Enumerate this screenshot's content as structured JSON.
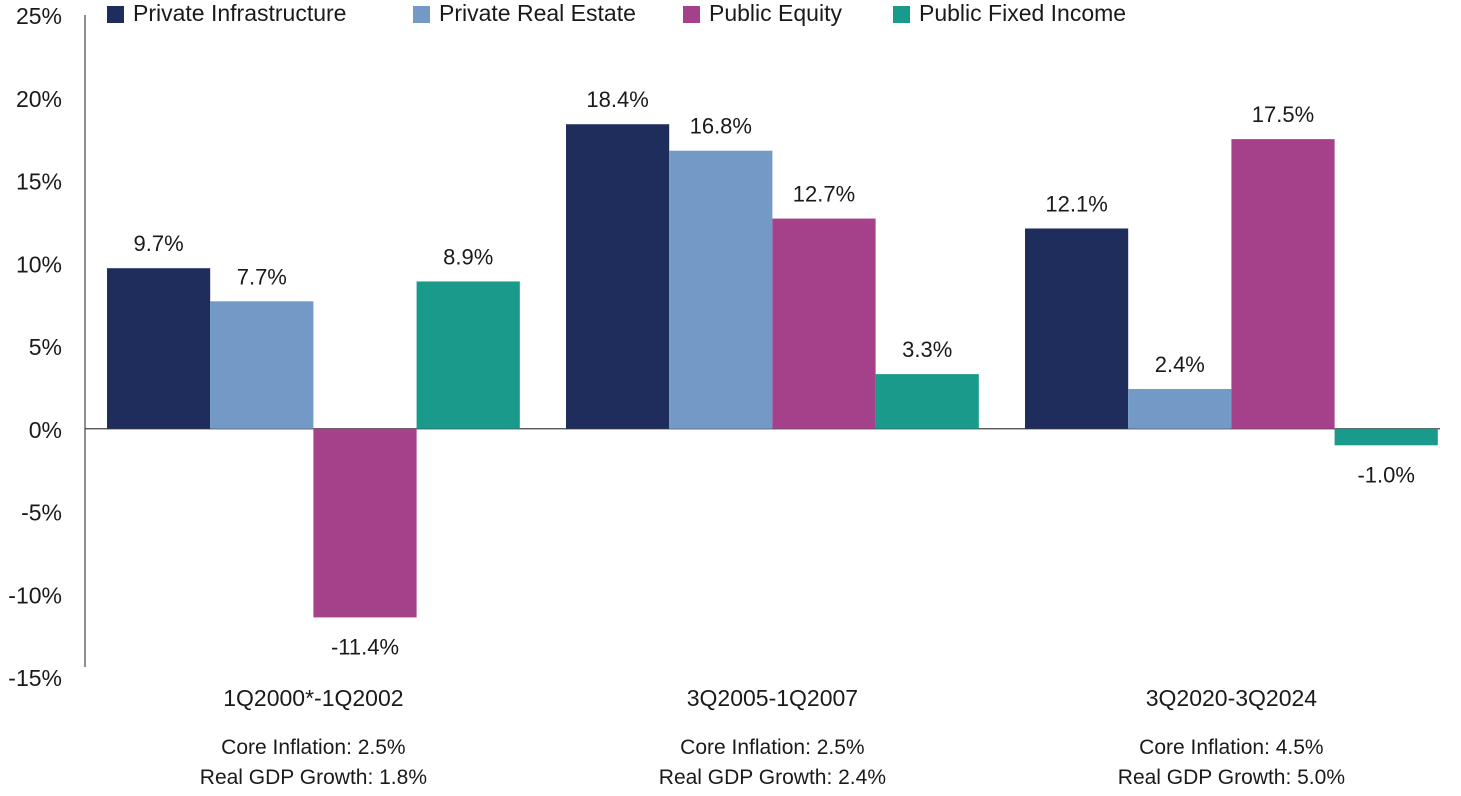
{
  "chart_data": {
    "type": "bar",
    "categories": [
      "1Q2000*-1Q2002",
      "3Q2005-1Q2007",
      "3Q2020-3Q2024"
    ],
    "category_notes": [
      [
        "Core Inflation: 2.5%",
        "Real GDP Growth: 1.8%"
      ],
      [
        "Core Inflation: 2.5%",
        "Real GDP Growth: 2.4%"
      ],
      [
        "Core Inflation: 4.5%",
        "Real GDP Growth: 5.0%"
      ]
    ],
    "series": [
      {
        "name": "Private Infrastructure",
        "color": "#1f2d5c",
        "values": [
          9.7,
          18.4,
          12.1
        ],
        "labels": [
          "9.7%",
          "18.4%",
          "12.1%"
        ]
      },
      {
        "name": "Private Real Estate",
        "color": "#7399c6",
        "values": [
          7.7,
          16.8,
          2.4
        ],
        "labels": [
          "7.7%",
          "16.8%",
          "2.4%"
        ]
      },
      {
        "name": "Public Equity",
        "color": "#a5418a",
        "values": [
          -11.4,
          12.7,
          17.5
        ],
        "labels": [
          "-11.4%",
          "12.7%",
          "17.5%"
        ]
      },
      {
        "name": "Public Fixed Income",
        "color": "#1a9a8a",
        "values": [
          8.9,
          3.3,
          -1.0
        ],
        "labels": [
          "8.9%",
          "3.3%",
          "-1.0%"
        ]
      }
    ],
    "y_ticks": [
      25,
      20,
      15,
      10,
      5,
      0,
      -5,
      -10,
      -15
    ],
    "y_tick_labels": [
      "25%",
      "20%",
      "15%",
      "10%",
      "5%",
      "0%",
      "-5%",
      "-10%",
      "-15%"
    ],
    "ylim": [
      -15,
      25
    ],
    "title": "",
    "xlabel": "",
    "ylabel": "",
    "grid": false,
    "legend_position": "top"
  }
}
